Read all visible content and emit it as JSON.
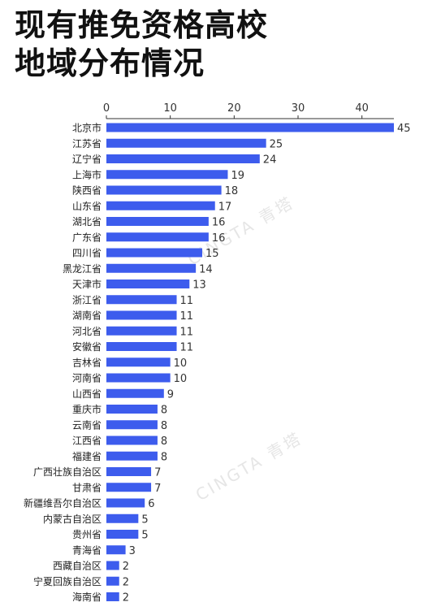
{
  "title_lines": [
    "现有推免资格高校",
    "地域分布情况"
  ],
  "watermark_text": "CINGTA 青塔",
  "colors": {
    "bar": "#3d5ced",
    "axis": "#333333",
    "title": "#111111",
    "watermark": "#e6e6e6"
  },
  "chart_data": {
    "type": "bar",
    "orientation": "horizontal",
    "title": "现有推免资格高校地域分布情况",
    "xlabel": "",
    "ylabel": "",
    "xlim": [
      0,
      45
    ],
    "ticks": [
      0,
      10,
      20,
      30,
      40
    ],
    "x_axis_position": "top",
    "grid": false,
    "legend": "none",
    "categories": [
      "北京市",
      "江苏省",
      "辽宁省",
      "上海市",
      "陕西省",
      "山东省",
      "湖北省",
      "广东省",
      "四川省",
      "黑龙江省",
      "天津市",
      "浙江省",
      "湖南省",
      "河北省",
      "安徽省",
      "吉林省",
      "河南省",
      "山西省",
      "重庆市",
      "云南省",
      "江西省",
      "福建省",
      "广西壮族自治区",
      "甘肃省",
      "新疆维吾尔自治区",
      "内蒙古自治区",
      "贵州省",
      "青海省",
      "西藏自治区",
      "宁夏回族自治区",
      "海南省"
    ],
    "values": [
      45,
      25,
      24,
      19,
      18,
      17,
      16,
      16,
      15,
      14,
      13,
      11,
      11,
      11,
      11,
      10,
      10,
      9,
      8,
      8,
      8,
      8,
      7,
      7,
      6,
      5,
      5,
      3,
      2,
      2,
      2
    ]
  }
}
